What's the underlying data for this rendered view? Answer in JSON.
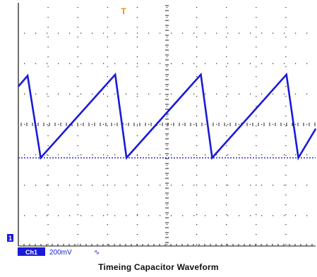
{
  "chart_data": {
    "type": "line",
    "title": "Timeing Capacitor Waveform",
    "xlabel": "",
    "ylabel": "",
    "xlim": [
      0,
      10
    ],
    "ylim": [
      -4,
      4
    ],
    "grid": true,
    "x_divisions": 10,
    "y_divisions": 8,
    "trigger_marker": "T",
    "ground_marker": "1",
    "channel": {
      "label": "Ch1",
      "scale": "200mV",
      "symbol": "∿"
    },
    "series": [
      {
        "color": "#1a1ad8",
        "x": [
          0,
          0.31,
          0.75,
          3.26,
          3.64,
          6.14,
          6.52,
          9.02,
          9.42,
          10.0
        ],
        "y": [
          1.25,
          1.6,
          -1.1,
          1.64,
          -1.1,
          1.64,
          -1.1,
          1.64,
          -1.1,
          -0.15
        ]
      }
    ],
    "reference_line": {
      "y": -1.1,
      "color": "#1a1ad8",
      "style": "dotted"
    }
  },
  "colors": {
    "trace": "#1a1ad8",
    "trigger": "#f08a1c",
    "channel_box": "#1a1ad8",
    "grid": "#222222"
  }
}
